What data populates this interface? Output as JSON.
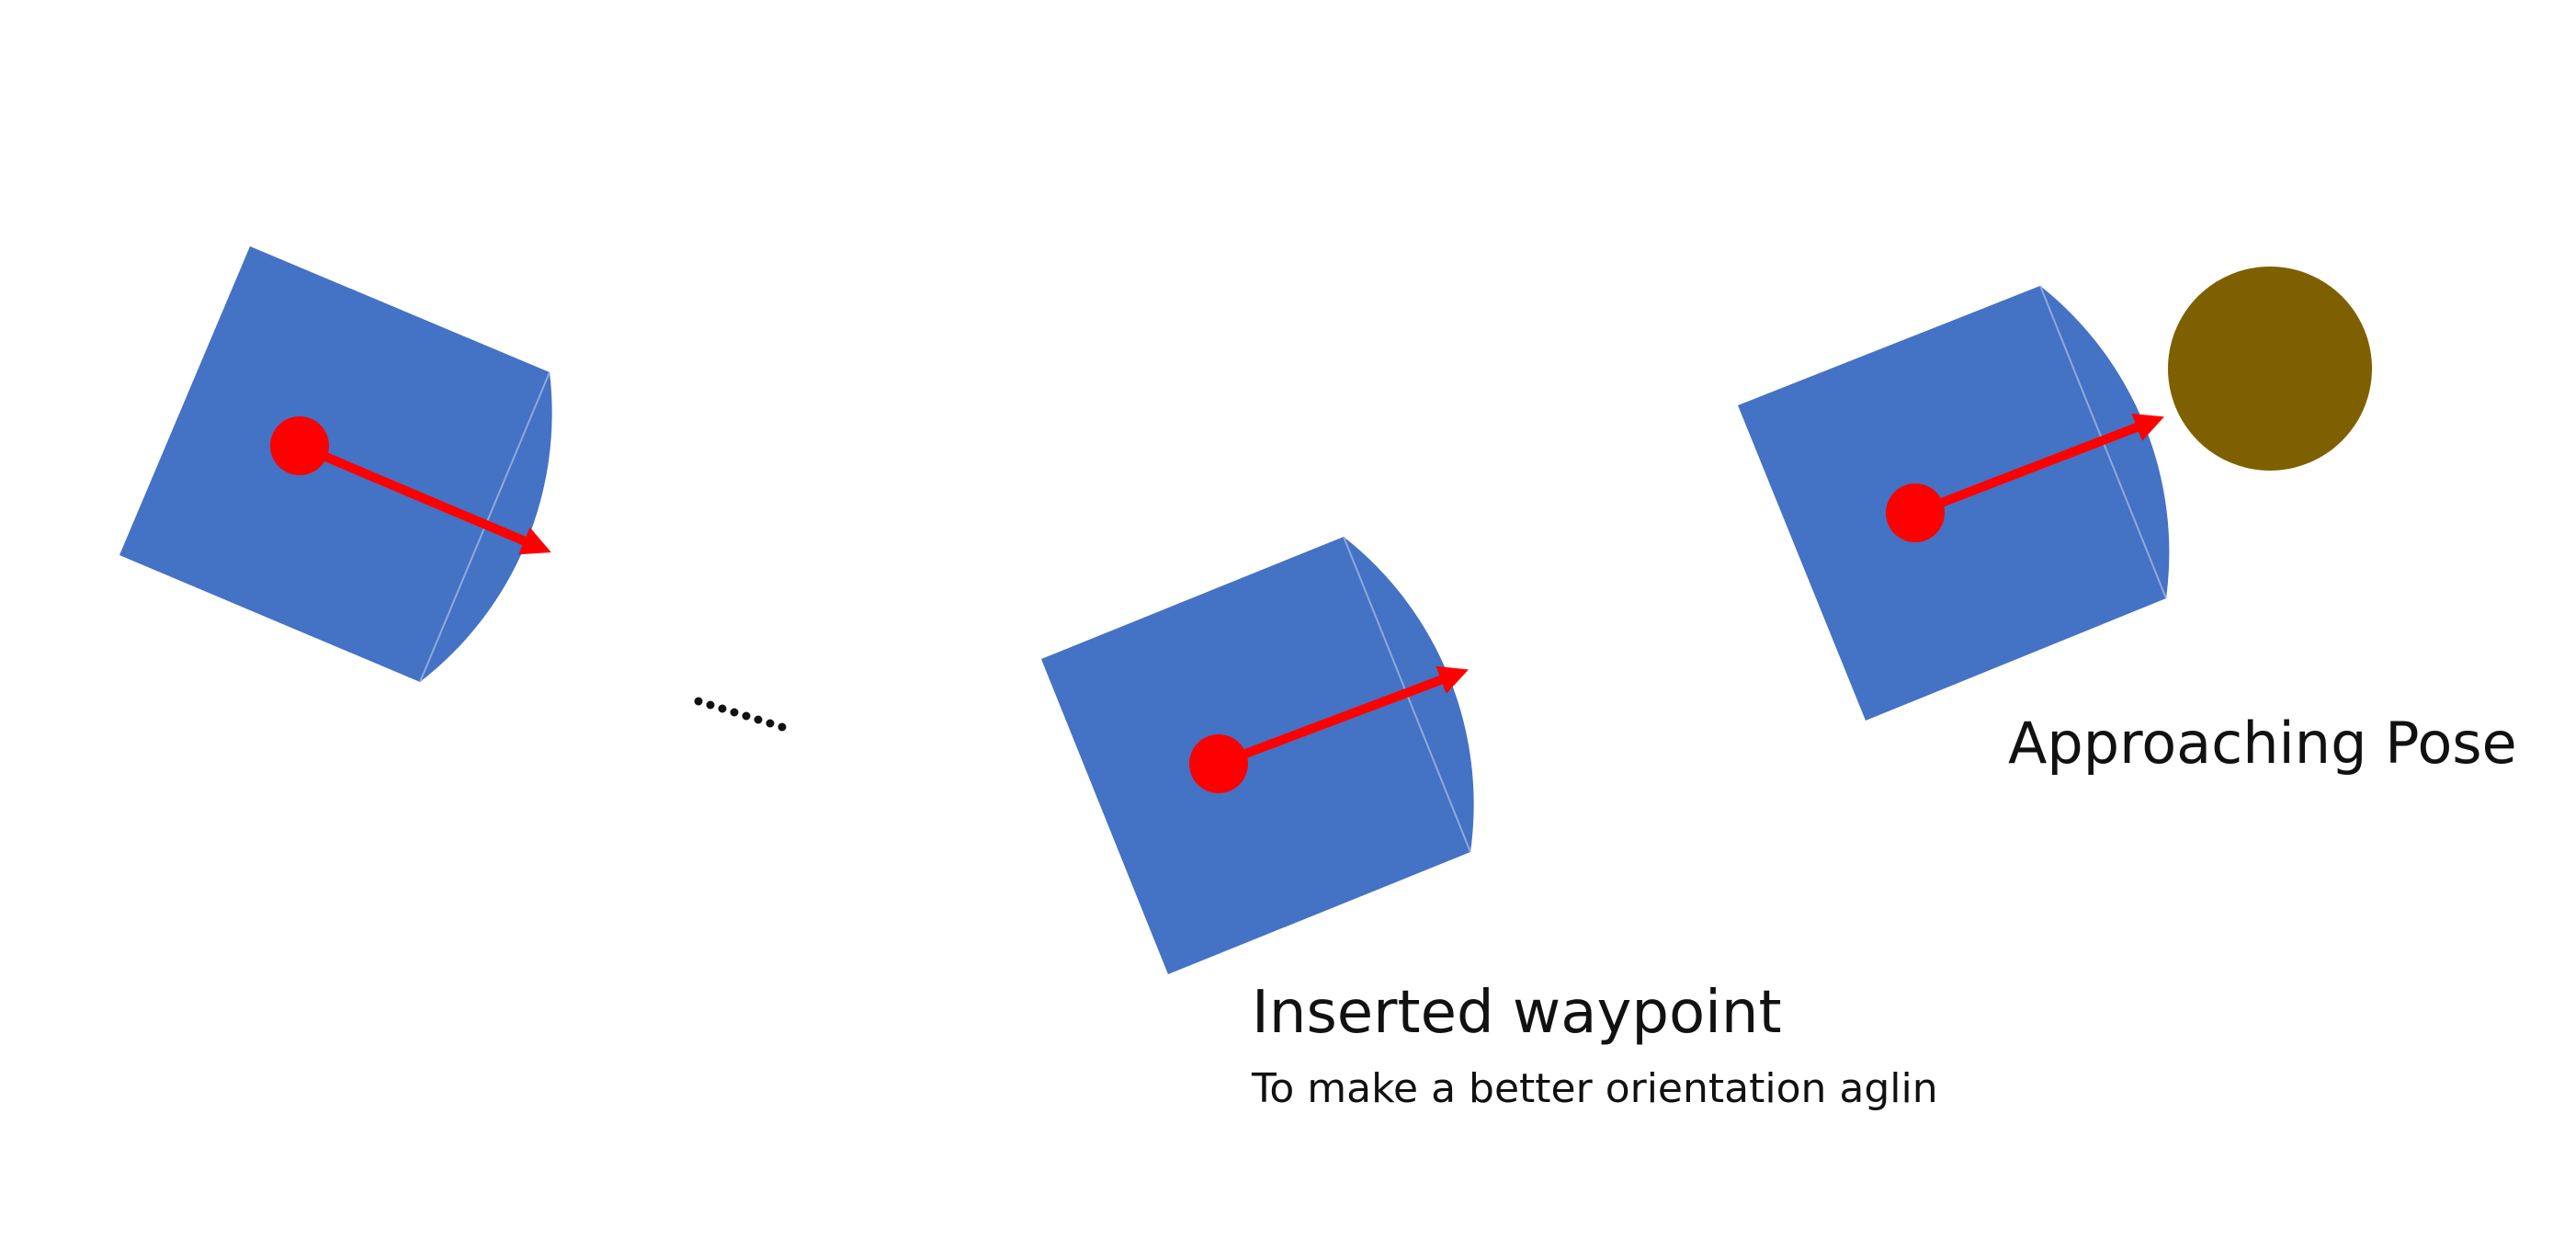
{
  "labels": {
    "approaching_pose": "Approaching Pose",
    "inserted_waypoint": "Inserted waypoint",
    "inserted_waypoint_note": "To make a better orientation aglin"
  },
  "robots": [
    {
      "id": "start-robot",
      "heading": "east-south-east"
    },
    {
      "id": "inserted-waypoint-robot",
      "heading": "east-north-east"
    },
    {
      "id": "approaching-pose-robot",
      "heading": "east-north-east"
    }
  ],
  "colors": {
    "robot_body": "#4472c4",
    "robot_outline": "#8fa9dc",
    "heading_marker": "#ff0000",
    "target": "#7f6000",
    "text": "#111111"
  },
  "icons": {
    "robot": "robot-footprint-icon",
    "heading": "heading-arrow-icon",
    "target": "target-circle-icon",
    "ellipsis": "ellipsis-icon"
  }
}
